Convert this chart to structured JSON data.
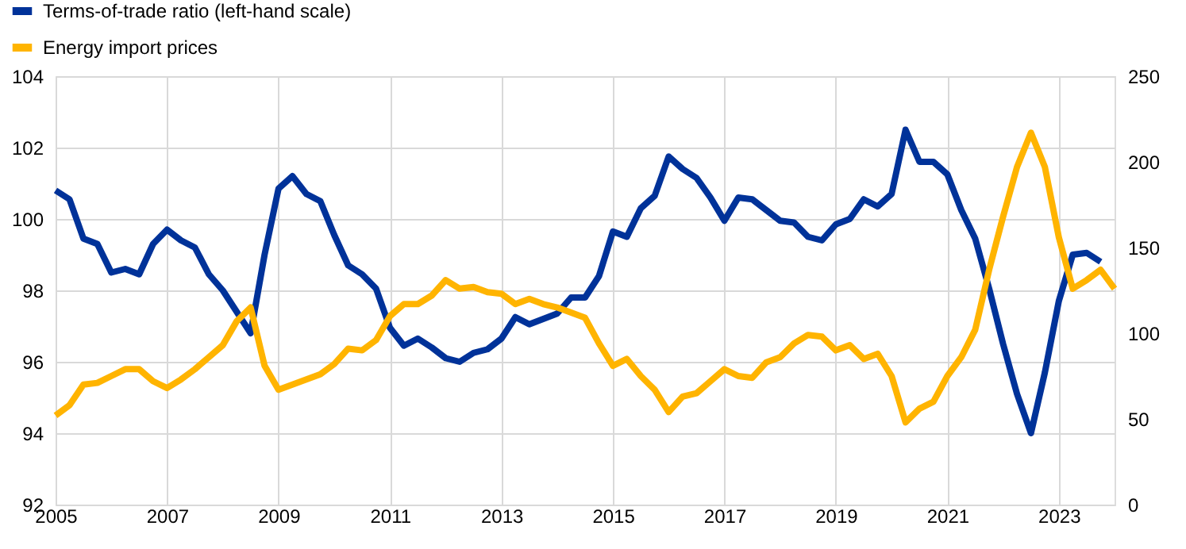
{
  "chart_data": {
    "type": "line",
    "x": [
      2005,
      2005.25,
      2005.5,
      2005.75,
      2006,
      2006.25,
      2006.5,
      2006.75,
      2007,
      2007.25,
      2007.5,
      2007.75,
      2008,
      2008.25,
      2008.5,
      2008.75,
      2009,
      2009.25,
      2009.5,
      2009.75,
      2010,
      2010.25,
      2010.5,
      2010.75,
      2011,
      2011.25,
      2011.5,
      2011.75,
      2012,
      2012.25,
      2012.5,
      2012.75,
      2013,
      2013.25,
      2013.5,
      2013.75,
      2014,
      2014.25,
      2014.5,
      2014.75,
      2015,
      2015.25,
      2015.5,
      2015.75,
      2016,
      2016.25,
      2016.5,
      2016.75,
      2017,
      2017.25,
      2017.5,
      2017.75,
      2018,
      2018.25,
      2018.5,
      2018.75,
      2019,
      2019.25,
      2019.5,
      2019.75,
      2020,
      2020.25,
      2020.5,
      2020.75,
      2021,
      2021.25,
      2021.5,
      2021.75,
      2022,
      2022.25,
      2022.5,
      2022.75,
      2023,
      2023.25,
      2023.5,
      2023.75,
      2024
    ],
    "series": [
      {
        "name": "Terms-of-trade ratio (left-hand scale)",
        "color": "#003299",
        "values": [
          100.8,
          100.55,
          99.45,
          99.3,
          98.5,
          98.6,
          98.45,
          99.3,
          99.7,
          99.4,
          99.2,
          98.45,
          98.0,
          97.4,
          96.8,
          99.0,
          100.85,
          101.2,
          100.7,
          100.5,
          99.55,
          98.7,
          98.45,
          98.05,
          96.95,
          96.45,
          96.65,
          96.4,
          96.1,
          96.0,
          96.25,
          96.35,
          96.65,
          97.25,
          97.05,
          97.2,
          97.35,
          97.8,
          97.8,
          98.4,
          99.65,
          99.5,
          100.3,
          100.65,
          101.75,
          101.4,
          101.15,
          100.6,
          99.95,
          100.6,
          100.55,
          100.25,
          99.95,
          99.9,
          99.5,
          99.4,
          99.85,
          100.0,
          100.55,
          100.35,
          100.7,
          102.5,
          101.6,
          101.6,
          101.25,
          100.25,
          99.45,
          98.05,
          96.5,
          95.1,
          94.0,
          95.7,
          97.7,
          99.0,
          99.05,
          98.8,
          null
        ]
      },
      {
        "name": "Energy import prices",
        "color": "#ffb400",
        "axis": "y2",
        "values": [
          52,
          58,
          70,
          71,
          75,
          79,
          79,
          72,
          68,
          73,
          79,
          86,
          93,
          107,
          115,
          81,
          67,
          70,
          73,
          76,
          82,
          91,
          90,
          96,
          110,
          117,
          117,
          122,
          131,
          126,
          127,
          124,
          123,
          117,
          120,
          117,
          115,
          112,
          109,
          94,
          81,
          85,
          75,
          67,
          54,
          63,
          65,
          72,
          79,
          75,
          74,
          83,
          86,
          94,
          99,
          98,
          90,
          93,
          85,
          88,
          75,
          48,
          56,
          60,
          75,
          86,
          102,
          137,
          168,
          197,
          217,
          197,
          156,
          126,
          131,
          137,
          126
        ]
      }
    ],
    "xlim": [
      2005,
      2024
    ],
    "xticks": [
      2005,
      2007,
      2009,
      2011,
      2013,
      2015,
      2017,
      2019,
      2021,
      2023
    ],
    "ylim": [
      92,
      104
    ],
    "yticks": [
      92,
      94,
      96,
      98,
      100,
      102,
      104
    ],
    "y2lim": [
      0,
      250
    ],
    "y2ticks": [
      0,
      50,
      100,
      150,
      200,
      250
    ],
    "grid": true,
    "legend": "top left",
    "marker": "none",
    "line_style": "solid"
  }
}
